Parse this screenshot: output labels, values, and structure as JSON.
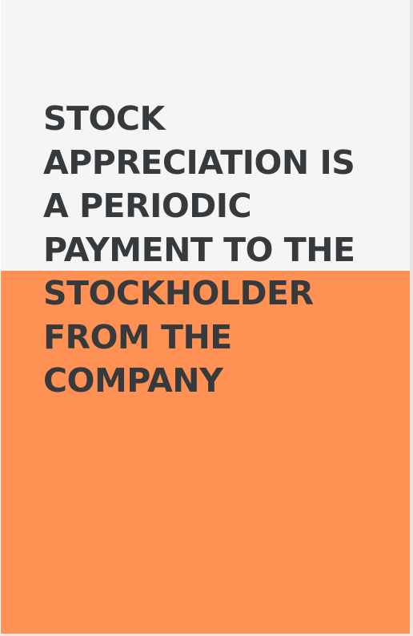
{
  "card": {
    "statement_lines": [
      "STOCK",
      "APPRECIATION IS",
      "A PERIODIC",
      "PAYMENT TO THE",
      "STOCKHOLDER",
      "FROM THE",
      "COMPANY"
    ]
  },
  "colors": {
    "background": "#f5f5f5",
    "accent": "#ff9155",
    "text": "#363a3d"
  }
}
